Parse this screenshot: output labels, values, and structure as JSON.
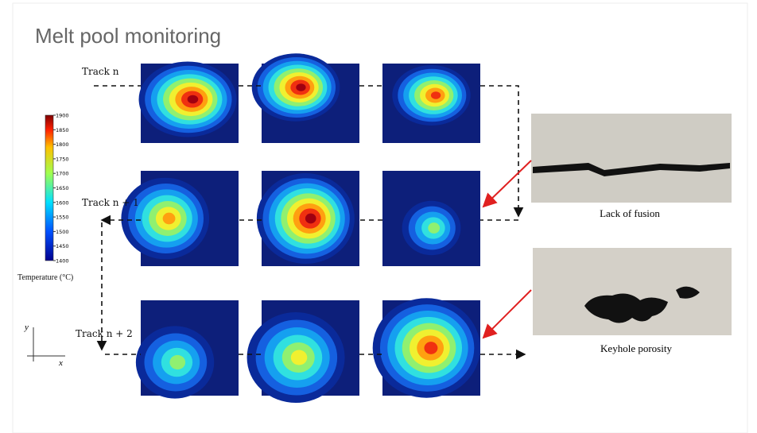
{
  "header": {
    "title": "Melt pool monitoring"
  },
  "tracks": [
    "Track n",
    "Track n + 1",
    "Track n + 2"
  ],
  "colorbar": {
    "ticks": [
      1400,
      1450,
      1500,
      1550,
      1600,
      1650,
      1700,
      1750,
      1800,
      1850,
      1900
    ],
    "label": "Temperature (°C)"
  },
  "axes": {
    "x": "x",
    "y": "y"
  },
  "defects": [
    {
      "caption": "Lack of fusion"
    },
    {
      "caption": "Keyhole porosity"
    }
  ]
}
